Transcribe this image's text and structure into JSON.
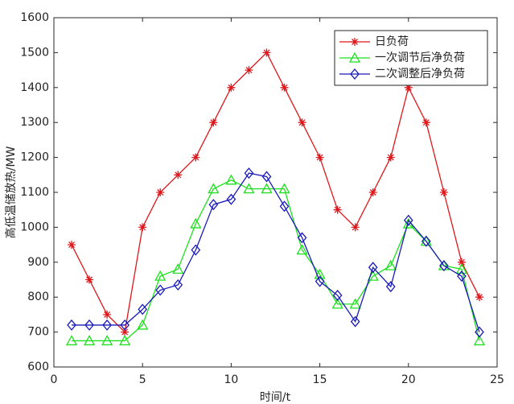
{
  "chart_data": {
    "type": "line",
    "xlabel": "时间/t",
    "ylabel": "高低温储放热/MW",
    "x": [
      1,
      2,
      3,
      4,
      5,
      6,
      7,
      8,
      9,
      10,
      11,
      12,
      13,
      14,
      15,
      16,
      17,
      18,
      19,
      20,
      21,
      22,
      23,
      24
    ],
    "series": [
      {
        "name": "日负荷",
        "color": "#e0161b",
        "marker": "star",
        "values": [
          950,
          850,
          750,
          700,
          1000,
          1100,
          1150,
          1200,
          1300,
          1400,
          1450,
          1500,
          1400,
          1300,
          1200,
          1050,
          1000,
          1100,
          1200,
          1400,
          1300,
          1100,
          900,
          800
        ]
      },
      {
        "name": "一次调节后净负荷",
        "color": "#1fe01f",
        "marker": "triangle",
        "values": [
          675,
          675,
          675,
          675,
          720,
          860,
          880,
          1010,
          1110,
          1135,
          1110,
          1110,
          1110,
          935,
          865,
          780,
          780,
          860,
          890,
          1010,
          960,
          890,
          880,
          675
        ]
      },
      {
        "name": "二次调整后净负荷",
        "color": "#1a1ab8",
        "marker": "diamond",
        "values": [
          720,
          720,
          720,
          720,
          765,
          820,
          835,
          935,
          1065,
          1080,
          1155,
          1145,
          1060,
          970,
          845,
          805,
          730,
          885,
          830,
          1020,
          960,
          890,
          860,
          700
        ]
      }
    ],
    "xlim": [
      0,
      25
    ],
    "xticks": [
      0,
      5,
      10,
      15,
      20,
      25
    ],
    "ylim": [
      600,
      1600
    ],
    "yticks": [
      600,
      700,
      800,
      900,
      1000,
      1100,
      1200,
      1300,
      1400,
      1500,
      1600
    ],
    "legend": "northeast"
  }
}
